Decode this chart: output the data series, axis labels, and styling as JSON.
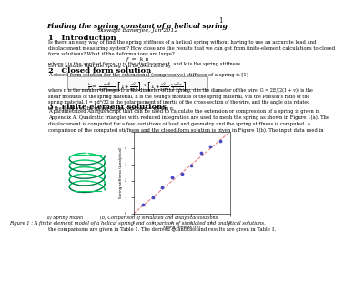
{
  "title": "Finding the spring constant of a helical spring",
  "subtitle": "Biswajit Banerjee, Jan 2012",
  "page_number": "1",
  "background_color": "#ffffff",
  "text_color": "#000000",
  "sections": [
    {
      "number": "1",
      "heading": "Introduction",
      "body": "Is there an easy way of find the spring stiffness of a helical spring without having to use an accurate load and\ndisplacement measuring system? How close are the results that we can get from finite-element calculations to closed\nform solutions? What if the deformations are large?\n\nLet us assume that the spring can be described by"
    },
    {
      "number": "2",
      "heading": "Closed form solution",
      "body": "A closed form solution for the extensional (compressive) stiffness of a spring is [1]"
    },
    {
      "number": "3",
      "heading": "Finite element solutions",
      "body": "A parametrized Abaqus script that can be used to calculate the extension or compression of a spring is given in\nAppendix A. Quadratic triangles with reduced integration are used to mesh the spring as shown in Figure 1(a). The\ndisplacement is computed for a few variations of load and geometry and the spring stiffness is computed. A\ncomparison of the computed stiffness and the closed-form solution is given in Figure 1(b). The input data used in"
    }
  ],
  "formula_f_ku": "f = k u",
  "formula_stiffness": "k       d^4         d^2          mu^2 d^2",
  "eq_description": "where f is the applied force, u is the displacement, and k is the spring stiffness.",
  "fig_caption": "Figure 1 : A finite element model of a helical spring and comparison of simulated and analytical solutions.",
  "fig_subcap_a": "(a) Spring model",
  "fig_subcap_b": "(b) Comparison of simulated and analytical solutions.",
  "bottom_text": "the comparisons are given in Table 1. The derived quantities and results are given in Table 1.",
  "spring_img_color": "#2a7a4a",
  "spring_bg_color": "#1a3a2a",
  "plot_line_color": "#e05050",
  "plot_point_color": "#4040c0",
  "plot_bg_color": "#ffffff"
}
